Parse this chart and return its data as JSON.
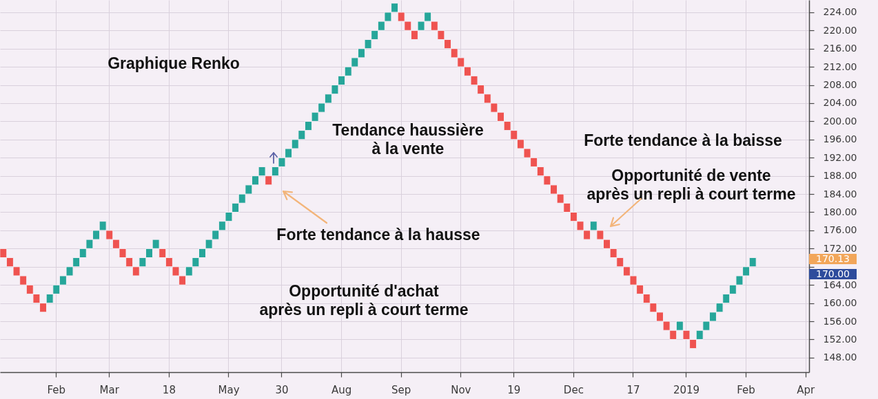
{
  "chart_data": {
    "type": "bar",
    "title": "Graphique Renko",
    "categories": [
      null,
      null,
      null,
      null,
      null,
      null,
      null,
      null,
      "Feb",
      null,
      null,
      null,
      null,
      null,
      null,
      null,
      "Mar",
      null,
      null,
      null,
      null,
      null,
      null,
      null,
      null,
      "18",
      null,
      null,
      null,
      null,
      null,
      null,
      null,
      null,
      "May",
      null,
      null,
      null,
      null,
      null,
      null,
      null,
      "30",
      null,
      null,
      null,
      null,
      null,
      null,
      null,
      null,
      "Aug",
      null,
      null,
      null,
      null,
      null,
      null,
      null,
      null,
      "Sep",
      null,
      null,
      null,
      null,
      null,
      null,
      null,
      null,
      "Nov",
      null,
      null,
      null,
      null,
      null,
      null,
      null,
      "19",
      null,
      null,
      null,
      null,
      null,
      null,
      null,
      null,
      "Dec",
      null,
      null,
      null,
      null,
      null,
      null,
      null,
      null,
      "17",
      null,
      null,
      null,
      null,
      null,
      null,
      null,
      "2019",
      null,
      null,
      null,
      null,
      null,
      null,
      null,
      null,
      "Feb",
      null,
      null,
      null,
      null,
      null,
      null,
      null,
      null,
      "Apr"
    ],
    "values": [
      -2,
      -2,
      -2,
      -2,
      -2,
      -2,
      -2,
      2,
      2,
      2,
      2,
      2,
      2,
      2,
      2,
      2,
      -2,
      -2,
      -2,
      -2,
      -2,
      2,
      2,
      2,
      -2,
      -2,
      -2,
      -2,
      2,
      2,
      2,
      2,
      2,
      2,
      2,
      2,
      2,
      2,
      2,
      2,
      -2,
      2,
      2,
      2,
      2,
      2,
      2,
      2,
      2,
      2,
      2,
      2,
      2,
      2,
      2,
      2,
      2,
      2,
      2,
      2,
      -2,
      -2,
      -2,
      2,
      2,
      -2,
      -2,
      -2,
      -2,
      -2,
      -2,
      -2,
      -2,
      -2,
      -2,
      -2,
      -2,
      -2,
      -2,
      -2,
      -2,
      -2,
      -2,
      -2,
      -2,
      -2,
      -2,
      -2,
      -2,
      2,
      -2,
      -2,
      -2,
      -2,
      -2,
      -2,
      -2,
      -2,
      -2,
      -2,
      -2,
      -2,
      2,
      -2,
      -2,
      2,
      2,
      2,
      2,
      2,
      2,
      2,
      2,
      2,
      null,
      null,
      null,
      null,
      null,
      null,
      null,
      null
    ],
    "base": [
      172,
      170,
      168,
      166,
      164,
      162,
      160,
      160,
      162,
      164,
      166,
      168,
      170,
      172,
      174,
      176,
      176,
      174,
      172,
      170,
      168,
      168,
      170,
      172,
      172,
      170,
      168,
      166,
      166,
      168,
      170,
      172,
      174,
      176,
      178,
      180,
      182,
      184,
      186,
      188,
      188,
      188,
      190,
      192,
      194,
      196,
      198,
      200,
      202,
      204,
      206,
      208,
      210,
      212,
      214,
      216,
      218,
      220,
      222,
      224,
      224,
      222,
      220,
      220,
      222,
      222,
      220,
      218,
      216,
      214,
      212,
      210,
      208,
      206,
      204,
      202,
      200,
      198,
      196,
      194,
      192,
      190,
      188,
      186,
      184,
      182,
      180,
      178,
      176,
      176,
      176,
      174,
      172,
      170,
      168,
      166,
      164,
      162,
      160,
      158,
      156,
      154,
      154,
      154,
      152,
      152,
      154,
      156,
      158,
      160,
      162,
      164,
      166,
      168,
      null,
      null,
      null,
      null,
      null,
      null,
      null,
      null
    ],
    "colors": [
      "#ef5350",
      "#ef5350",
      "#ef5350",
      "#ef5350",
      "#ef5350",
      "#ef5350",
      "#ef5350",
      "#26a69a",
      "#26a69a",
      "#26a69a",
      "#26a69a",
      "#26a69a",
      "#26a69a",
      "#26a69a",
      "#26a69a",
      "#26a69a",
      "#ef5350",
      "#ef5350",
      "#ef5350",
      "#ef5350",
      "#ef5350",
      "#26a69a",
      "#26a69a",
      "#26a69a",
      "#ef5350",
      "#ef5350",
      "#ef5350",
      "#ef5350",
      "#26a69a",
      "#26a69a",
      "#26a69a",
      "#26a69a",
      "#26a69a",
      "#26a69a",
      "#26a69a",
      "#26a69a",
      "#26a69a",
      "#26a69a",
      "#26a69a",
      "#26a69a",
      "#ef5350",
      "#26a69a",
      "#26a69a",
      "#26a69a",
      "#26a69a",
      "#26a69a",
      "#26a69a",
      "#26a69a",
      "#26a69a",
      "#26a69a",
      "#26a69a",
      "#26a69a",
      "#26a69a",
      "#26a69a",
      "#26a69a",
      "#26a69a",
      "#26a69a",
      "#26a69a",
      "#26a69a",
      "#26a69a",
      "#ef5350",
      "#ef5350",
      "#ef5350",
      "#26a69a",
      "#26a69a",
      "#ef5350",
      "#ef5350",
      "#ef5350",
      "#ef5350",
      "#ef5350",
      "#ef5350",
      "#ef5350",
      "#ef5350",
      "#ef5350",
      "#ef5350",
      "#ef5350",
      "#ef5350",
      "#ef5350",
      "#ef5350",
      "#ef5350",
      "#ef5350",
      "#ef5350",
      "#ef5350",
      "#ef5350",
      "#ef5350",
      "#ef5350",
      "#ef5350",
      "#ef5350",
      "#ef5350",
      "#26a69a",
      "#ef5350",
      "#ef5350",
      "#ef5350",
      "#ef5350",
      "#ef5350",
      "#ef5350",
      "#ef5350",
      "#ef5350",
      "#ef5350",
      "#ef5350",
      "#ef5350",
      "#ef5350",
      "#26a69a",
      "#ef5350",
      "#ef5350",
      "#26a69a",
      "#26a69a",
      "#26a69a",
      "#26a69a",
      "#26a69a",
      "#26a69a",
      "#26a69a",
      "#26a69a",
      "#26a69a",
      null,
      null,
      null,
      null,
      null,
      null,
      null,
      null
    ],
    "ylim": [
      144.8,
      226.7
    ],
    "yticks": [
      {
        "value": 148,
        "label": "148.00"
      },
      {
        "value": 152,
        "label": "152.00"
      },
      {
        "value": 156,
        "label": "156.00"
      },
      {
        "value": 160,
        "label": "160.00"
      },
      {
        "value": 164,
        "label": "164.00"
      },
      {
        "value": 168,
        "label": null
      },
      {
        "value": 172,
        "label": "172.00"
      },
      {
        "value": 176,
        "label": "176.00"
      },
      {
        "value": 180,
        "label": "180.00"
      },
      {
        "value": 184,
        "label": "184.00"
      },
      {
        "value": 188,
        "label": "188.00"
      },
      {
        "value": 192,
        "label": "192.00"
      },
      {
        "value": 196,
        "label": "196.00"
      },
      {
        "value": 200,
        "label": "200.00"
      },
      {
        "value": 204,
        "label": "204.00"
      },
      {
        "value": 208,
        "label": "208.00"
      },
      {
        "value": 212,
        "label": "212.00"
      },
      {
        "value": 216,
        "label": "216.00"
      },
      {
        "value": 220,
        "label": "220.00"
      },
      {
        "value": 224,
        "label": "224.00"
      }
    ],
    "grid": true,
    "annotations": [
      "Tendance haussière\nà la vente",
      "Forte tendance à la baisse",
      "Opportunité de vente\naprès un repli à court terme",
      "Forte tendance à la hausse",
      "Opportunité d'achat\naprès un repli à court terme",
      "170.13",
      "170.00"
    ]
  }
}
